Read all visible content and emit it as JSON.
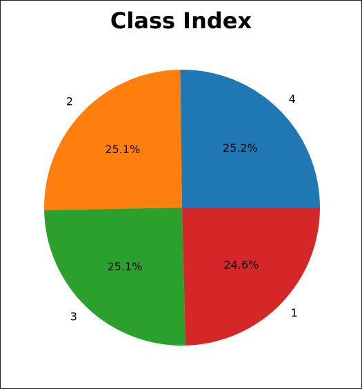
{
  "chart_data": {
    "type": "pie",
    "title": "Class Index",
    "labels": [
      "4",
      "2",
      "3",
      "1"
    ],
    "values": [
      25.2,
      25.1,
      25.1,
      24.6
    ],
    "percent_labels": [
      "25.2%",
      "25.1%",
      "25.1%",
      "24.6%"
    ],
    "colors": [
      "#1f77b4",
      "#ff7f0e",
      "#2ca02c",
      "#d62728"
    ],
    "start_angle_deg": 0,
    "direction": "counterclockwise"
  }
}
